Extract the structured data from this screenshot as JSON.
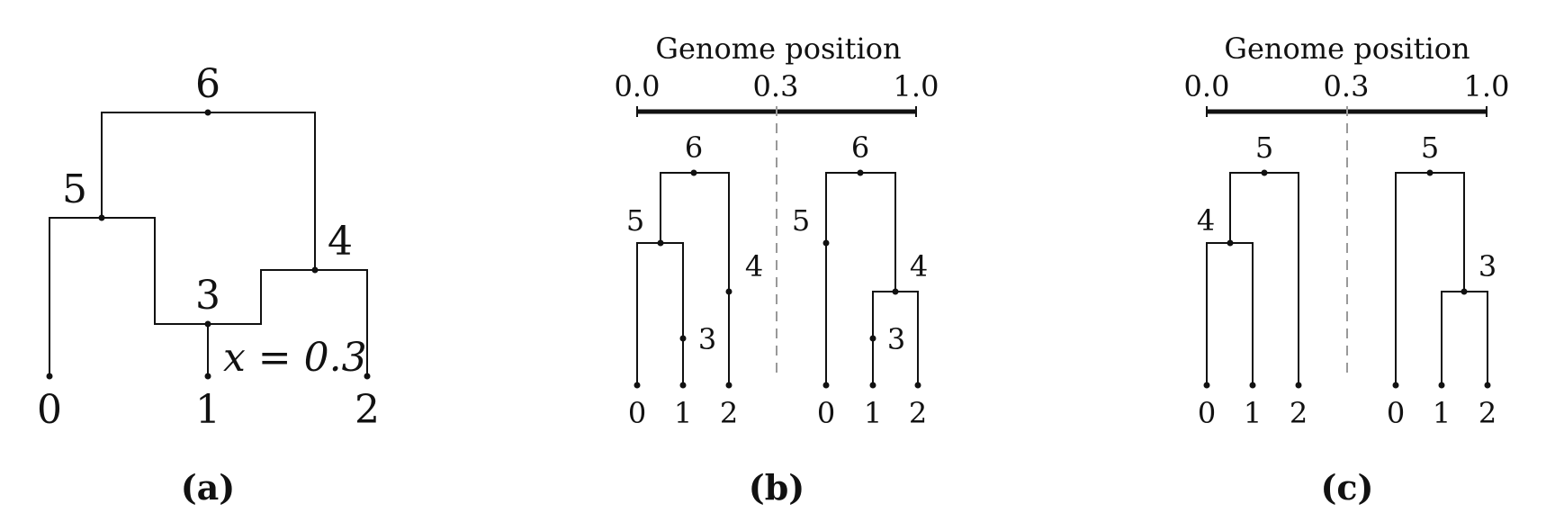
{
  "panel_a": {
    "caption": "(a)",
    "leaves": [
      "0",
      "1",
      "2"
    ],
    "node_3": "3",
    "node_4": "4",
    "node_5": "5",
    "node_6": "6",
    "recomb_label": "x = 0.3"
  },
  "panel_b": {
    "caption": "(b)",
    "axis_title": "Genome position",
    "ticks": [
      "0.0",
      "0.3",
      "1.0"
    ],
    "left_tree": {
      "leaves": [
        "0",
        "1",
        "2"
      ],
      "nodes": [
        "3",
        "4",
        "5",
        "6"
      ]
    },
    "right_tree": {
      "leaves": [
        "0",
        "1",
        "2"
      ],
      "nodes": [
        "3",
        "4",
        "5",
        "6"
      ]
    }
  },
  "panel_c": {
    "caption": "(c)",
    "axis_title": "Genome position",
    "ticks": [
      "0.0",
      "0.3",
      "1.0"
    ],
    "left_tree": {
      "leaves": [
        "0",
        "1",
        "2"
      ],
      "nodes": [
        "4",
        "5"
      ]
    },
    "right_tree": {
      "leaves": [
        "0",
        "1",
        "2"
      ],
      "nodes": [
        "3",
        "5"
      ]
    }
  }
}
